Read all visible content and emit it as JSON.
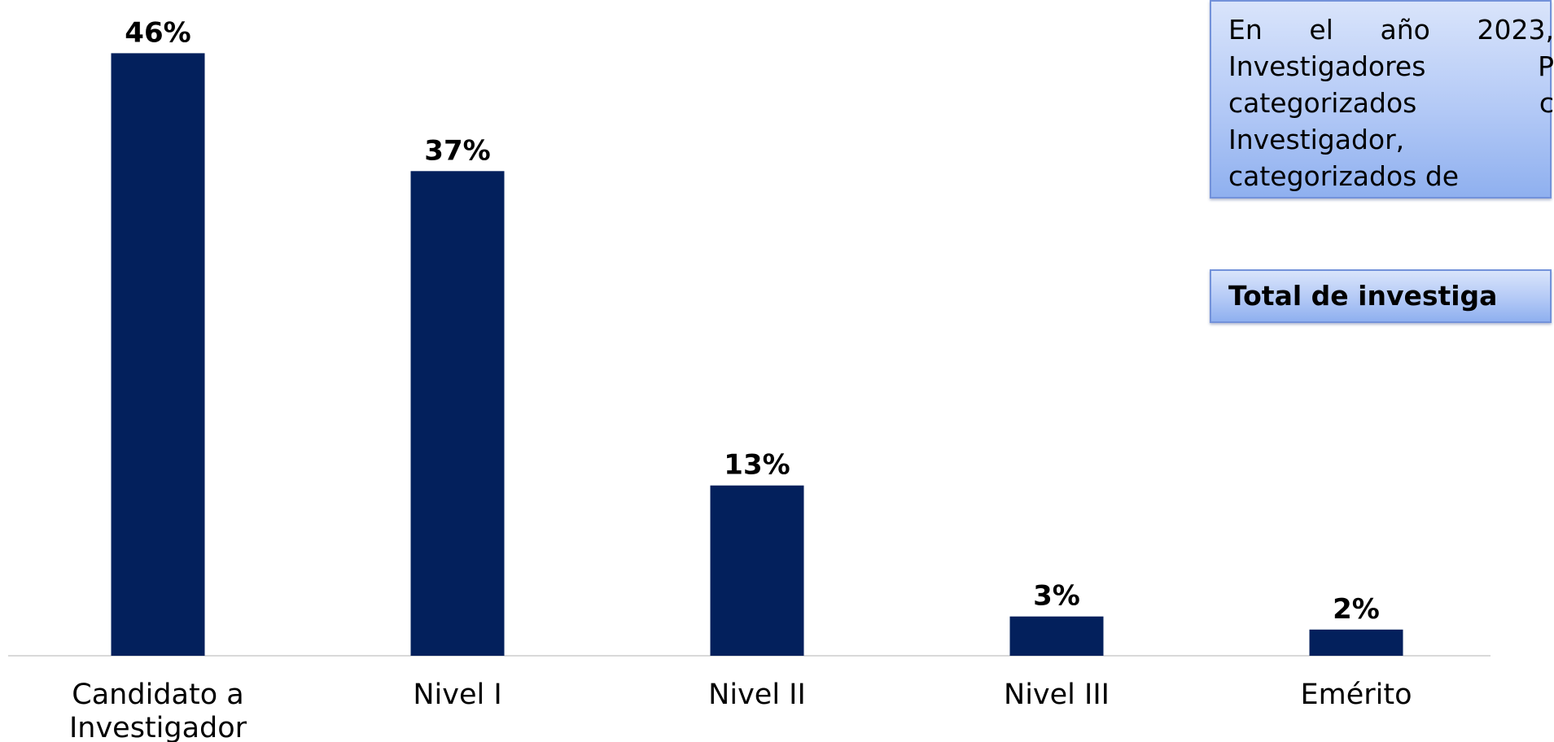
{
  "chart_data": {
    "type": "bar",
    "categories": [
      "Candidato a Investigador",
      "Nivel I",
      "Nivel II",
      "Nivel III",
      "Emérito"
    ],
    "category_lines": [
      [
        "Candidato a",
        "Investigador"
      ],
      [
        "Nivel I"
      ],
      [
        "Nivel II"
      ],
      [
        "Nivel III"
      ],
      [
        "Emérito"
      ]
    ],
    "values": [
      46,
      37,
      13,
      3,
      2
    ],
    "value_labels": [
      "46%",
      "37%",
      "13%",
      "3%",
      "2%"
    ],
    "unit": "%",
    "bar_color": "#03205c",
    "axis_color": "#d9d9d9",
    "grid": false,
    "legend": "none",
    "title": "",
    "xlabel": "",
    "ylabel": ""
  },
  "text_boxes": {
    "main_text": "En el año 2023, Investigadores P categorizados c Investigador, categorizados de",
    "main_lines": [
      "En el año 2023,",
      "Investigadores P",
      "categorizados c",
      "Investigador,",
      "categorizados de"
    ],
    "total_text": "Total de investiga"
  },
  "colors": {
    "box_gradient_top": "#d9e4fb",
    "box_gradient_bottom": "#8fb0ef",
    "box_border": "#7392da"
  }
}
